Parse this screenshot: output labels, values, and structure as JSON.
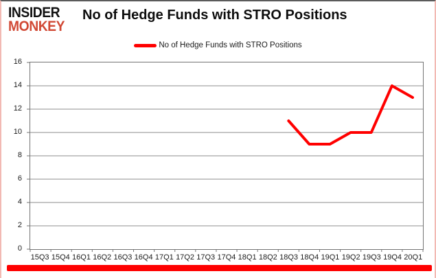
{
  "header": {
    "logo_line1": "INSIDER",
    "logo_line2": "MONKEY",
    "title": "No of Hedge Funds with STRO Positions"
  },
  "legend": {
    "label": "No of Hedge Funds with STRO Positions"
  },
  "colors": {
    "series_line": "#ff0000",
    "logo_black": "#111111",
    "logo_red": "#d14834",
    "grid_line": "#8c8c8c",
    "axis_border": "#737373",
    "axis_text": "#1a1a1a",
    "frame_side_border": "#f2b9b3",
    "frame_top_border": "#5a5a5a",
    "bottom_bar": "#fe0000"
  },
  "chart_data": {
    "type": "line",
    "title": "No of Hedge Funds with STRO Positions",
    "categories": [
      "15Q3",
      "15Q4",
      "16Q1",
      "16Q2",
      "16Q3",
      "16Q4",
      "17Q1",
      "17Q2",
      "17Q3",
      "17Q4",
      "18Q1",
      "18Q2",
      "18Q3",
      "18Q4",
      "19Q1",
      "19Q2",
      "19Q3",
      "19Q4",
      "20Q1"
    ],
    "series": [
      {
        "name": "No of Hedge Funds with STRO Positions",
        "color": "#ff0000",
        "values": [
          null,
          null,
          null,
          null,
          null,
          null,
          null,
          null,
          null,
          null,
          null,
          null,
          11,
          9,
          9,
          10,
          10,
          14,
          13
        ]
      }
    ],
    "xlabel": "",
    "ylabel": "",
    "ylim": [
      0,
      16
    ],
    "ytick_step": 2,
    "grid": true,
    "legend_position": "top-center"
  }
}
